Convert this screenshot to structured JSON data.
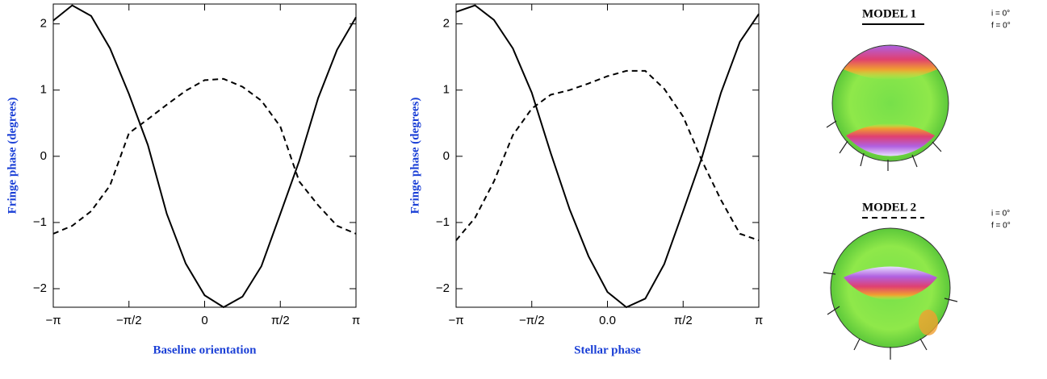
{
  "chart_data": [
    {
      "type": "line",
      "xlabel": "Baseline orientation",
      "ylabel": "Fringe phase (degrees)",
      "x": [
        -3.1416,
        -2.7489,
        -2.3562,
        -1.9635,
        -1.5708,
        -1.1781,
        -0.7854,
        -0.3927,
        0,
        0.3927,
        0.7854,
        1.1781,
        1.5708,
        1.9635,
        2.3562,
        2.7489,
        3.1416
      ],
      "series": [
        {
          "color": "#000000",
          "style": "solid",
          "values": [
            2.05,
            2.28,
            2.12,
            1.63,
            0.94,
            0.17,
            -0.87,
            -1.62,
            -2.1,
            -2.28,
            -2.12,
            -1.66,
            -0.87,
            -0.07,
            0.88,
            1.61,
            2.1
          ]
        },
        {
          "color": "#000000",
          "style": "dashed",
          "values": [
            -1.17,
            -1.05,
            -0.83,
            -0.44,
            0.35,
            0.56,
            0.78,
            0.99,
            1.15,
            1.17,
            1.05,
            0.84,
            0.45,
            -0.38,
            -0.74,
            -1.05,
            -1.17
          ]
        }
      ],
      "xlim": [
        -3.1416,
        3.1416
      ],
      "ylim": [
        -2.28,
        2.3
      ],
      "xticks": [
        {
          "value": -3.1416,
          "label": "−π"
        },
        {
          "value": -1.5708,
          "label": "−π/2"
        },
        0,
        {
          "value": 1.5708,
          "label": "π/2"
        },
        {
          "value": 3.1416,
          "label": "π"
        }
      ],
      "yticks": [
        -2,
        -1,
        0,
        1,
        2
      ]
    },
    {
      "type": "line",
      "xlabel": "Stellar phase",
      "ylabel": "Fringe phase (degrees)",
      "x": [
        -3.1416,
        -2.7489,
        -2.3562,
        -1.9635,
        -1.5708,
        -1.1781,
        -0.7854,
        -0.3927,
        0,
        0.3927,
        0.7854,
        1.1781,
        1.5708,
        1.9635,
        2.3562,
        2.7489,
        3.1416
      ],
      "series": [
        {
          "color": "#000000",
          "style": "solid",
          "values": [
            2.18,
            2.28,
            2.06,
            1.63,
            0.96,
            0.05,
            -0.8,
            -1.51,
            -2.05,
            -2.28,
            -2.15,
            -1.63,
            -0.83,
            -0.01,
            0.96,
            1.73,
            2.15
          ]
        },
        {
          "color": "#000000",
          "style": "dashed",
          "values": [
            -1.27,
            -0.93,
            -0.38,
            0.32,
            0.72,
            0.93,
            1.0,
            1.1,
            1.21,
            1.29,
            1.29,
            1.02,
            0.6,
            -0.07,
            -0.66,
            -1.17,
            -1.27
          ]
        }
      ],
      "xlim": [
        -3.1416,
        3.1416
      ],
      "ylim": [
        -2.28,
        2.3
      ],
      "xticks": [
        {
          "value": -3.1416,
          "label": "−π"
        },
        {
          "value": -1.5708,
          "label": "−π/2"
        },
        {
          "value": 0,
          "label": "0.0"
        },
        {
          "value": 1.5708,
          "label": "π/2"
        },
        {
          "value": 3.1416,
          "label": "π"
        }
      ],
      "yticks": [
        -2,
        -1,
        0,
        1,
        2
      ]
    }
  ],
  "models": [
    {
      "label": "MODEL 1",
      "inclination": "i = 0°",
      "f": "f = 0°"
    },
    {
      "label": "MODEL 2",
      "inclination": "i = 0°",
      "f": "f = 0°"
    }
  ]
}
